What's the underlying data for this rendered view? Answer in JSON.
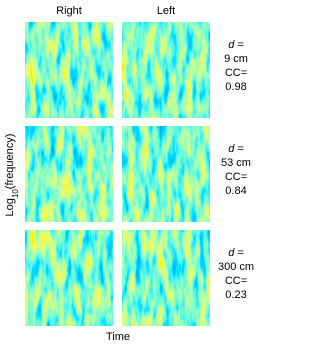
{
  "columns": [
    "Right",
    "Left"
  ],
  "x_label": "Time",
  "y_label": {
    "base": "Log",
    "sub": "10",
    "rest": "(frequency)"
  },
  "rows": [
    {
      "symbol": "d",
      "equals": "=",
      "distance": "9 cm",
      "cc_label": "CC=",
      "cc": 0.98
    },
    {
      "symbol": "d",
      "equals": "=",
      "distance": "53 cm",
      "cc_label": "CC=",
      "cc": 0.84
    },
    {
      "symbol": "d",
      "equals": "=",
      "distance": "300 cm",
      "cc_label": "CC=",
      "cc": 0.23
    }
  ]
}
